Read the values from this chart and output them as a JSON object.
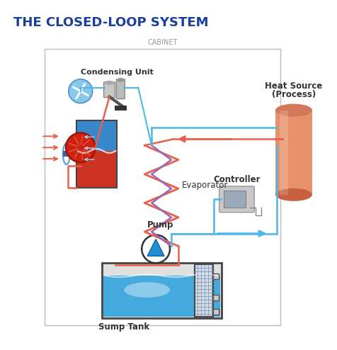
{
  "title": "THE CLOSED-LOOP SYSTEM",
  "title_color": "#1a3fa0",
  "cabinet_label": "CABINET",
  "cabinet_label_color": "#999999",
  "bg_color": "#ffffff",
  "labels": {
    "condensing_unit": "Condensing Unit",
    "evaporator": "Evaporator",
    "pump": "Pump",
    "sump_tank": "Sump Tank",
    "controller": "Controller",
    "heat_source_line1": "Heat Source",
    "heat_source_line2": "(Process)"
  },
  "colors": {
    "red_line": "#e8604c",
    "blue_line": "#4db8e8",
    "purple_line": "#9966bb",
    "heat_source_body": "#e8906a",
    "heat_source_top": "#d07858",
    "heat_source_bot": "#c86040",
    "sump_water": "#55bbee",
    "pump_blue": "#2090d0",
    "dark_blue": "#1060a0",
    "light_gray": "#cccccc",
    "mid_gray": "#aaaaaa",
    "dark_gray": "#555555",
    "red_comp": "#cc3322",
    "blue_comp": "#4499cc",
    "fan_blue": "#88c8e8",
    "cabinet_border": "#bbbbbb",
    "text_dark": "#333333"
  }
}
